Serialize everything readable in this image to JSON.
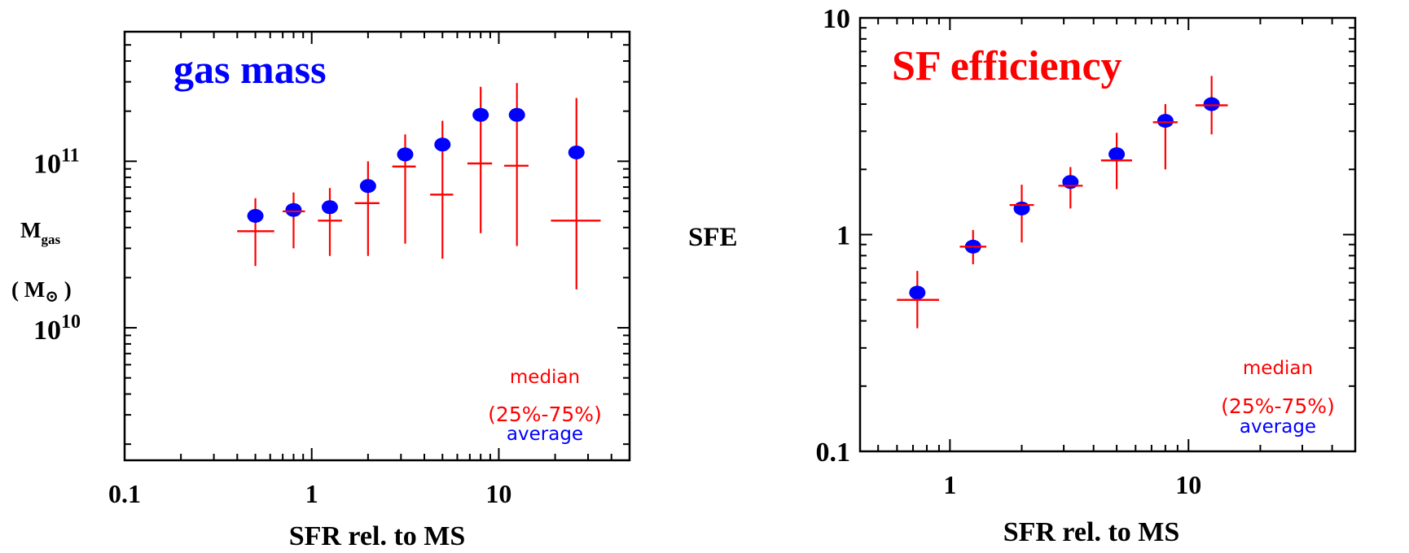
{
  "chart_data": [
    {
      "type": "scatter",
      "title": "gas mass",
      "xlabel": "SFR rel. to MS",
      "ylabel": "M",
      "ylabel_sub": "gas",
      "yunit_open": "( M",
      "yunit_symbol": "⊙",
      "yunit_close": " )",
      "xscale": "log",
      "yscale": "log",
      "xlim": [
        0.1,
        50
      ],
      "ylim": [
        1600000000.0,
        600000000000.0
      ],
      "x_ticks": [
        {
          "value": 0.1,
          "label": "0.1"
        },
        {
          "value": 1,
          "label": "1"
        },
        {
          "value": 10,
          "label": "10"
        }
      ],
      "y_ticks": [
        {
          "value": 10000000000.0,
          "base": "10",
          "exp": "10"
        },
        {
          "value": 100000000000.0,
          "base": "10",
          "exp": "11"
        }
      ],
      "legend": {
        "position": "bottom-right",
        "median": "median",
        "range": "(25%-75%)",
        "average": "average"
      },
      "series": [
        {
          "name": "median",
          "color": "#ff0000",
          "marker": "cross",
          "points": [
            {
              "x": 0.5,
              "y": 38000000000.0,
              "x_lo": 0.4,
              "x_hi": 0.63,
              "y_lo": 23500000000.0,
              "y_hi": 60000000000.0
            },
            {
              "x": 0.8,
              "y": 50000000000.0,
              "x_lo": 0.7,
              "x_hi": 0.92,
              "y_lo": 30000000000.0,
              "y_hi": 65000000000.0
            },
            {
              "x": 1.25,
              "y": 44000000000.0,
              "x_lo": 1.08,
              "x_hi": 1.45,
              "y_lo": 27000000000.0,
              "y_hi": 69000000000.0
            },
            {
              "x": 2.0,
              "y": 56000000000.0,
              "x_lo": 1.7,
              "x_hi": 2.3,
              "y_lo": 27000000000.0,
              "y_hi": 100000000000.0
            },
            {
              "x": 3.16,
              "y": 93000000000.0,
              "x_lo": 2.7,
              "x_hi": 3.6,
              "y_lo": 32000000000.0,
              "y_hi": 145000000000.0
            },
            {
              "x": 5.0,
              "y": 63000000000.0,
              "x_lo": 4.3,
              "x_hi": 5.7,
              "y_lo": 26000000000.0,
              "y_hi": 175000000000.0
            },
            {
              "x": 8.0,
              "y": 97000000000.0,
              "x_lo": 6.8,
              "x_hi": 9.2,
              "y_lo": 37000000000.0,
              "y_hi": 280000000000.0
            },
            {
              "x": 12.5,
              "y": 94000000000.0,
              "x_lo": 10.7,
              "x_hi": 14.4,
              "y_lo": 31000000000.0,
              "y_hi": 295000000000.0
            },
            {
              "x": 26.0,
              "y": 44000000000.0,
              "x_lo": 19.0,
              "x_hi": 35.0,
              "y_lo": 17000000000.0,
              "y_hi": 240000000000.0
            }
          ]
        },
        {
          "name": "average",
          "color": "#0000ff",
          "marker": "dot",
          "points": [
            {
              "x": 0.5,
              "y": 47000000000.0
            },
            {
              "x": 0.8,
              "y": 51000000000.0
            },
            {
              "x": 1.25,
              "y": 53000000000.0
            },
            {
              "x": 2.0,
              "y": 71000000000.0
            },
            {
              "x": 3.16,
              "y": 110000000000.0
            },
            {
              "x": 5.0,
              "y": 126000000000.0
            },
            {
              "x": 8.0,
              "y": 190000000000.0
            },
            {
              "x": 12.5,
              "y": 190000000000.0
            },
            {
              "x": 26.0,
              "y": 113000000000.0
            }
          ]
        }
      ]
    },
    {
      "type": "scatter",
      "title": "SF efficiency",
      "xlabel": "SFR rel. to MS",
      "ylabel": "SFE",
      "xscale": "log",
      "yscale": "log",
      "xlim": [
        0.42,
        50
      ],
      "ylim": [
        0.1,
        10
      ],
      "x_ticks": [
        {
          "value": 1,
          "label": "1"
        },
        {
          "value": 10,
          "label": "10"
        }
      ],
      "y_ticks": [
        {
          "value": 0.1,
          "label": "0.1"
        },
        {
          "value": 1,
          "label": "1"
        },
        {
          "value": 10,
          "label": "10"
        }
      ],
      "legend": {
        "position": "bottom-right",
        "median": "median",
        "range": "(25%-75%)",
        "average": "average"
      },
      "series": [
        {
          "name": "median",
          "color": "#ff0000",
          "marker": "cross",
          "points": [
            {
              "x": 0.73,
              "y": 0.5,
              "x_lo": 0.6,
              "x_hi": 0.9,
              "y_lo": 0.37,
              "y_hi": 0.68
            },
            {
              "x": 1.25,
              "y": 0.88,
              "x_lo": 1.1,
              "x_hi": 1.42,
              "y_lo": 0.73,
              "y_hi": 1.05
            },
            {
              "x": 2.0,
              "y": 1.37,
              "x_lo": 1.78,
              "x_hi": 2.25,
              "y_lo": 0.92,
              "y_hi": 1.7
            },
            {
              "x": 3.2,
              "y": 1.68,
              "x_lo": 2.85,
              "x_hi": 3.6,
              "y_lo": 1.32,
              "y_hi": 2.05
            },
            {
              "x": 5.0,
              "y": 2.2,
              "x_lo": 4.3,
              "x_hi": 5.8,
              "y_lo": 1.62,
              "y_hi": 2.95
            },
            {
              "x": 8.0,
              "y": 3.3,
              "x_lo": 7.1,
              "x_hi": 9.0,
              "y_lo": 2.0,
              "y_hi": 4.0
            },
            {
              "x": 12.5,
              "y": 3.95,
              "x_lo": 10.7,
              "x_hi": 14.6,
              "y_lo": 2.9,
              "y_hi": 5.4
            }
          ]
        },
        {
          "name": "average",
          "color": "#0000ff",
          "marker": "dot",
          "points": [
            {
              "x": 0.73,
              "y": 0.54
            },
            {
              "x": 1.25,
              "y": 0.88
            },
            {
              "x": 2.0,
              "y": 1.32
            },
            {
              "x": 3.2,
              "y": 1.75
            },
            {
              "x": 5.0,
              "y": 2.35
            },
            {
              "x": 8.0,
              "y": 3.35
            },
            {
              "x": 12.5,
              "y": 4.0
            }
          ]
        }
      ]
    }
  ]
}
